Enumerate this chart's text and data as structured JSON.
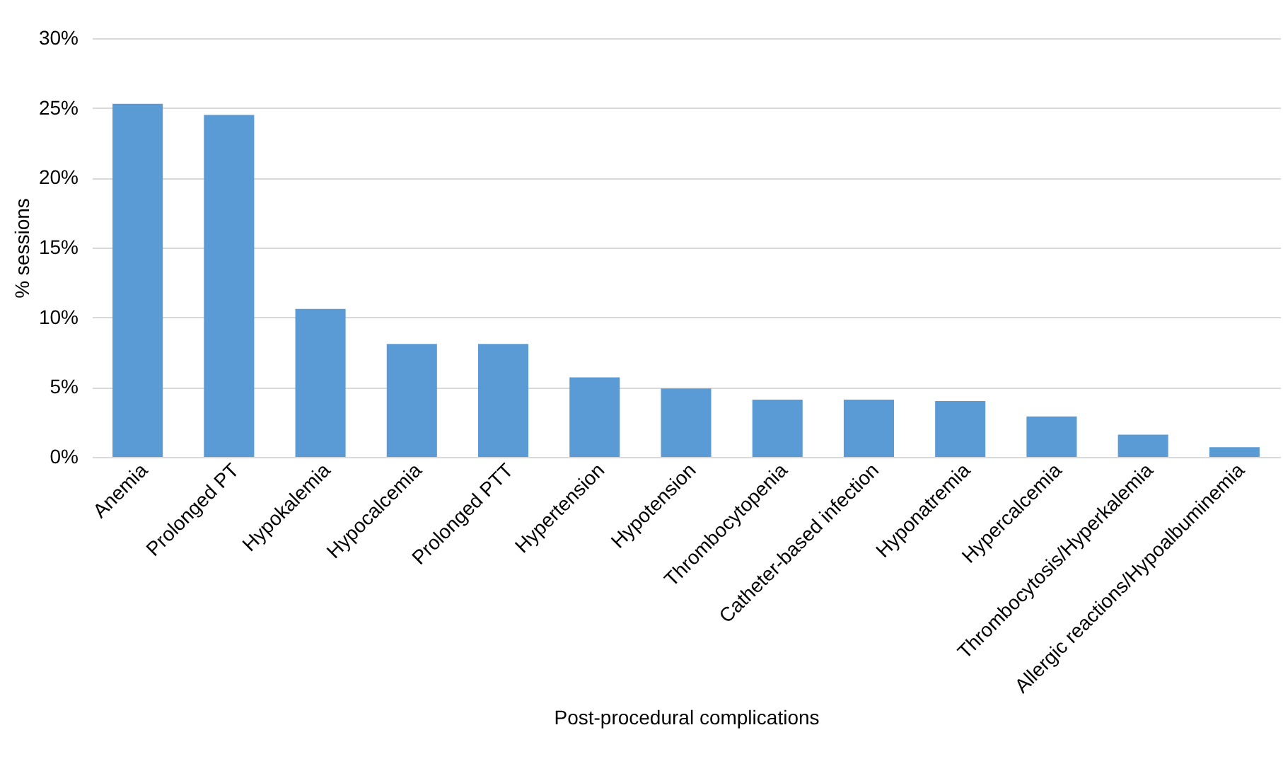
{
  "chart_data": {
    "type": "bar",
    "xlabel": "Post-procedural complications",
    "ylabel": "% sessions",
    "categories": [
      "Anemia",
      "Prolonged PT",
      "Hypokalemia",
      "Hypocalcemia",
      "Prolonged PTT",
      "Hypertension",
      "Hypotension",
      "Thrombocytopenia",
      "Catheter-based infection",
      "Hyponatremia",
      "Hypercalcemia",
      "Thrombocytosis/Hyperkalemia",
      "Allergic reactions/Hypoalbuminemia"
    ],
    "values": [
      25.3,
      24.5,
      10.6,
      8.1,
      8.1,
      5.7,
      4.9,
      4.1,
      4.1,
      4.0,
      2.9,
      1.6,
      0.7
    ],
    "color": "#5b9bd5",
    "ylim": [
      0,
      30
    ],
    "yticks": [
      {
        "value": 0,
        "label": "0%"
      },
      {
        "value": 5,
        "label": "5%"
      },
      {
        "value": 10,
        "label": "10%"
      },
      {
        "value": 15,
        "label": "15%"
      },
      {
        "value": 20,
        "label": "20%"
      },
      {
        "value": 25,
        "label": "25%"
      },
      {
        "value": 30,
        "label": "30%"
      }
    ],
    "grid": "y",
    "legend": false
  }
}
